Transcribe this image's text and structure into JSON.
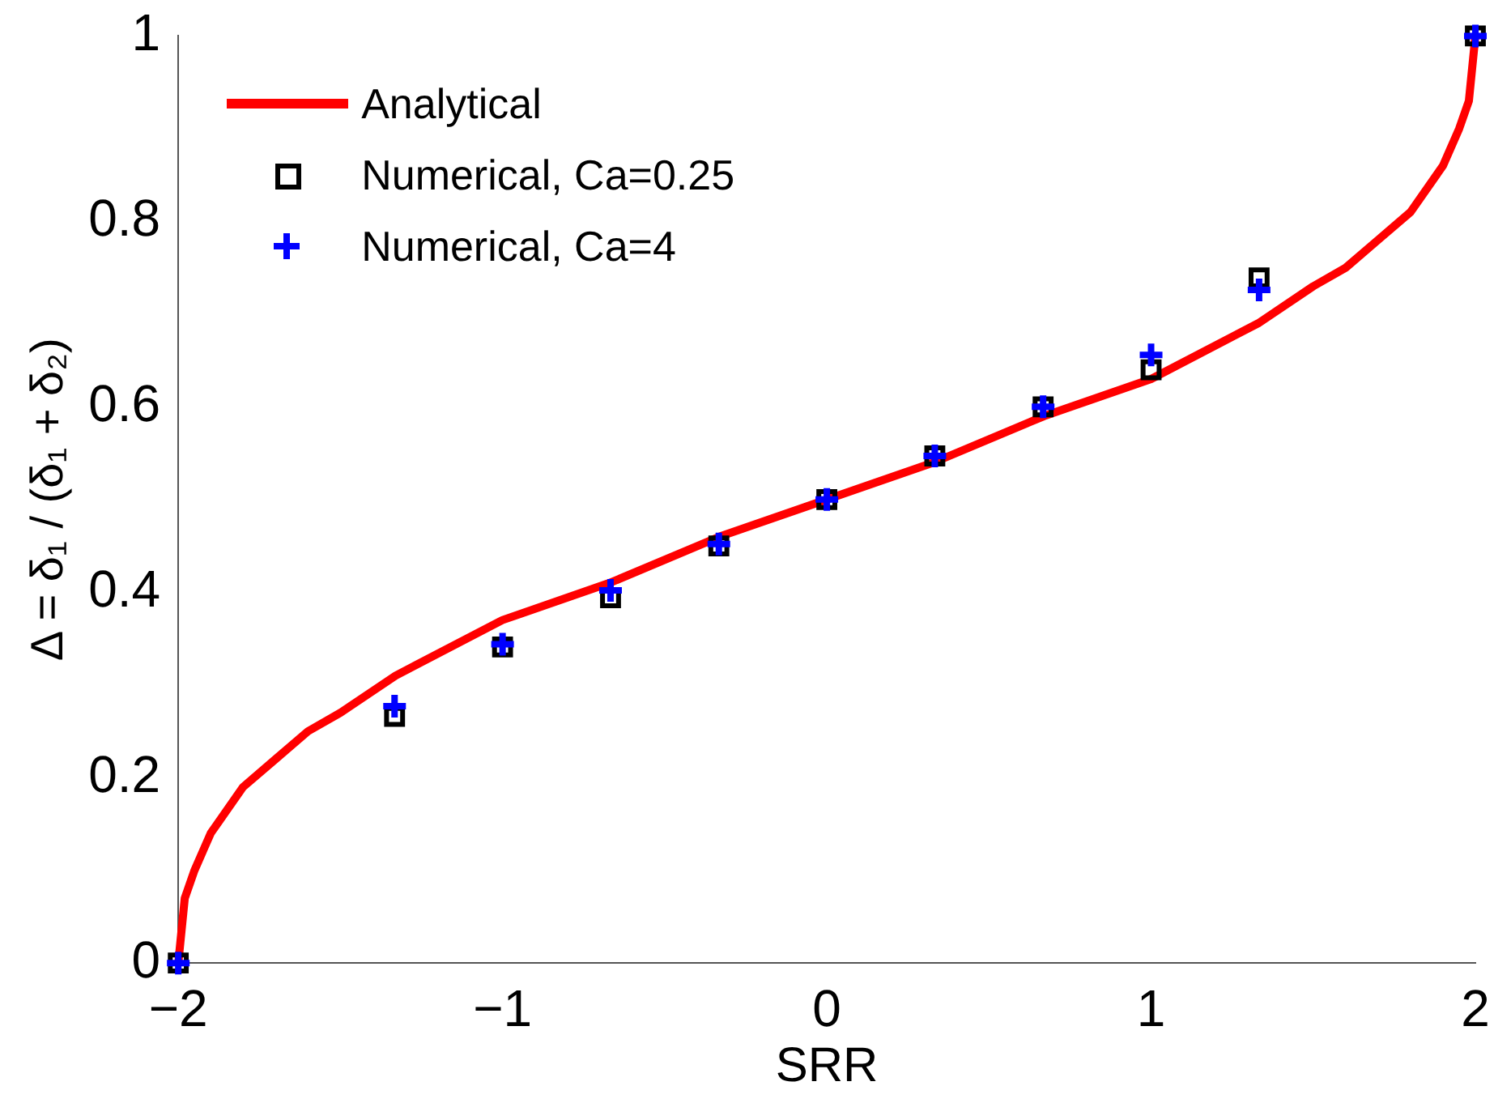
{
  "chart_data": {
    "type": "line",
    "xlabel": "SRR",
    "ylabel": "Δ = δ₁ / (δ₁ + δ₂)",
    "xlim": [
      -2,
      2
    ],
    "xticks": [
      {
        "value": -2,
        "label": "−2"
      },
      {
        "value": -1,
        "label": "−1"
      },
      0,
      1,
      2
    ],
    "ylim": [
      0,
      1
    ],
    "yticks": [
      0,
      0.2,
      0.4,
      0.6,
      0.8,
      1
    ],
    "grid": false,
    "legend": "top left",
    "series": [
      {
        "name": "Analytical",
        "type": "line",
        "color": "#ff0000",
        "marker": "none",
        "line_style": "solid",
        "x": [
          -2,
          -1.98,
          -1.95,
          -1.9,
          -1.8,
          -1.7,
          -1.6,
          -1.5,
          -1.33,
          -1,
          -0.67,
          -0.33,
          0,
          0.33,
          0.67,
          1,
          1.33,
          1.5,
          1.6,
          1.7,
          1.8,
          1.9,
          1.95,
          1.98,
          2
        ],
        "values": [
          0,
          0.07,
          0.1,
          0.14,
          0.19,
          0.22,
          0.25,
          0.27,
          0.31,
          0.37,
          0.41,
          0.46,
          0.5,
          0.54,
          0.59,
          0.63,
          0.69,
          0.73,
          0.75,
          0.78,
          0.81,
          0.86,
          0.9,
          0.93,
          1
        ]
      },
      {
        "name": "Numerical, Ca=0.25",
        "type": "scatter",
        "color": "#000000",
        "marker": "square",
        "x": [
          -2,
          -1.333,
          -1,
          -0.667,
          -0.333,
          0,
          0.333,
          0.667,
          1,
          1.333,
          2
        ],
        "values": [
          0,
          0.266,
          0.341,
          0.394,
          0.45,
          0.5,
          0.547,
          0.6,
          0.64,
          0.739,
          1
        ]
      },
      {
        "name": "Numerical, Ca=4",
        "type": "scatter",
        "color": "#0000ff",
        "marker": "cross",
        "x": [
          -2,
          -1.333,
          -1,
          -0.667,
          -0.333,
          0,
          0.333,
          0.667,
          1,
          1.333,
          2
        ],
        "values": [
          0,
          0.277,
          0.344,
          0.402,
          0.452,
          0.5,
          0.547,
          0.6,
          0.656,
          0.726,
          1
        ]
      }
    ]
  }
}
